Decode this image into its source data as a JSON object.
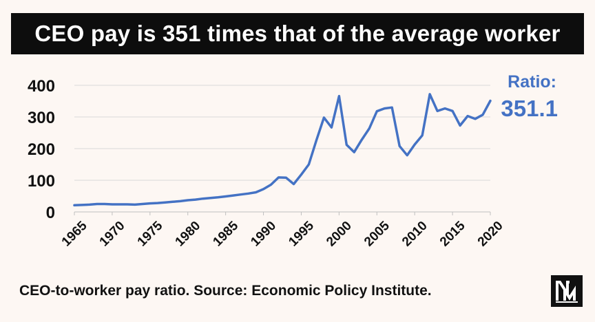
{
  "title": "CEO pay is 351 times that of the average worker",
  "footer": "CEO-to-worker pay ratio. Source: Economic Policy Institute.",
  "colors": {
    "line": "#4472c4",
    "title_bg": "#0d0d0d",
    "background": "#fdf7f3"
  },
  "logo_icon": "nm-logo-icon",
  "chart_data": {
    "type": "line",
    "title": "",
    "xlabel": "",
    "ylabel": "",
    "xlim": [
      1965,
      2020
    ],
    "ylim": [
      0,
      400
    ],
    "yticks": [
      0,
      100,
      200,
      300,
      400
    ],
    "xticks": [
      1965,
      1970,
      1975,
      1980,
      1985,
      1990,
      1995,
      2000,
      2005,
      2010,
      2015,
      2020
    ],
    "grid": "horizontal",
    "series": [
      {
        "name": "",
        "x": [
          1965,
          1966,
          1967,
          1968,
          1969,
          1970,
          1971,
          1972,
          1973,
          1974,
          1975,
          1976,
          1977,
          1978,
          1979,
          1980,
          1981,
          1982,
          1983,
          1984,
          1985,
          1986,
          1987,
          1988,
          1989,
          1990,
          1991,
          1992,
          1993,
          1994,
          1995,
          1996,
          1997,
          1998,
          1999,
          2000,
          2001,
          2002,
          2003,
          2004,
          2005,
          2006,
          2007,
          2008,
          2009,
          2010,
          2011,
          2012,
          2013,
          2014,
          2015,
          2016,
          2017,
          2018,
          2019,
          2020
        ],
        "values": [
          21,
          22,
          23,
          25,
          25,
          24,
          24,
          24,
          23,
          25,
          27,
          28,
          30,
          32,
          34,
          37,
          39,
          42,
          44,
          46,
          49,
          52,
          55,
          58,
          62,
          72,
          86,
          109,
          108,
          88,
          118,
          150,
          226,
          298,
          267,
          366,
          212,
          189,
          228,
          264,
          318,
          327,
          330,
          208,
          179,
          213,
          242,
          372,
          319,
          327,
          319,
          273,
          303,
          294,
          307,
          351
        ]
      }
    ],
    "annotation": {
      "label": "Ratio:",
      "value": "351.1"
    }
  }
}
